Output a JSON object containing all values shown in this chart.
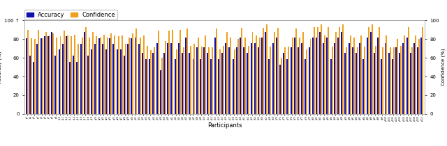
{
  "title": "",
  "xlabel": "Participants",
  "ylabel_left": "Accuracy (%)",
  "ylabel_right": "Confidence (%)",
  "ylim": [
    0,
    100
  ],
  "yticks": [
    0,
    20,
    40,
    60,
    80,
    100
  ],
  "bar_color_accuracy": "#1010aa",
  "bar_color_confidence": "#f0a020",
  "legend_accuracy": "Accuracy",
  "legend_confidence": "Confidence",
  "n_participants": 110,
  "accuracy": [
    81,
    62,
    56,
    75,
    81,
    83,
    83,
    88,
    62,
    69,
    75,
    83,
    56,
    62,
    56,
    75,
    88,
    62,
    69,
    75,
    81,
    75,
    69,
    81,
    75,
    69,
    69,
    62,
    75,
    81,
    82,
    75,
    65,
    59,
    59,
    65,
    76,
    47,
    65,
    76,
    76,
    59,
    76,
    65,
    82,
    65,
    59,
    71,
    59,
    71,
    65,
    59,
    82,
    59,
    65,
    76,
    71,
    59,
    71,
    82,
    71,
    65,
    76,
    76,
    71,
    82,
    88,
    59,
    76,
    82,
    53,
    65,
    59,
    71,
    82,
    71,
    76,
    59,
    71,
    82,
    82,
    88,
    76,
    82,
    59,
    76,
    82,
    88,
    65,
    76,
    71,
    65,
    76,
    59,
    82,
    88,
    65,
    82,
    59,
    76,
    65,
    59,
    71,
    65,
    76,
    82,
    65,
    76,
    71,
    82
  ],
  "confidence": [
    90,
    81,
    80,
    90,
    81,
    88,
    84,
    86,
    82,
    83,
    89,
    84,
    83,
    85,
    75,
    82,
    93,
    82,
    88,
    83,
    82,
    85,
    82,
    86,
    84,
    83,
    84,
    75,
    82,
    86,
    91,
    82,
    84,
    73,
    68,
    71,
    89,
    60,
    78,
    89,
    90,
    69,
    90,
    71,
    91,
    73,
    75,
    82,
    72,
    84,
    71,
    71,
    91,
    69,
    73,
    88,
    82,
    69,
    80,
    92,
    82,
    73,
    88,
    84,
    82,
    92,
    96,
    72,
    88,
    92,
    60,
    71,
    72,
    82,
    91,
    82,
    88,
    69,
    80,
    93,
    93,
    96,
    84,
    93,
    72,
    88,
    93,
    96,
    71,
    84,
    82,
    71,
    84,
    72,
    93,
    96,
    73,
    93,
    71,
    84,
    71,
    71,
    80,
    73,
    84,
    93,
    71,
    84,
    80,
    93
  ],
  "participant_ids": [
    "p1",
    "p2",
    "p3",
    "p4",
    "p5",
    "p6",
    "p7",
    "p8",
    "p9",
    "p10",
    "p11",
    "p12",
    "p13",
    "p14",
    "p15",
    "p16",
    "p17",
    "p18",
    "p19",
    "p20",
    "p21",
    "p22",
    "p23",
    "p24",
    "p25",
    "p26",
    "p27",
    "p28",
    "p29",
    "p30",
    "p31",
    "p32",
    "p33",
    "p34",
    "p35",
    "p36",
    "p37",
    "p38",
    "p39",
    "p40",
    "p41",
    "p42",
    "p43",
    "p44",
    "p45",
    "p46",
    "p47",
    "p48",
    "p49",
    "p50",
    "p51",
    "p52",
    "p53",
    "p54",
    "p55",
    "p56",
    "p57",
    "p58",
    "p59",
    "p60",
    "p61",
    "p62",
    "p63",
    "p64",
    "p65",
    "p66",
    "p67",
    "p68",
    "p69",
    "p70",
    "p71",
    "p72",
    "p73",
    "p74",
    "p75",
    "p76",
    "p77",
    "p78",
    "p79",
    "p80",
    "p81",
    "p82",
    "p83",
    "p84",
    "p85",
    "p86",
    "p87",
    "p88",
    "p89",
    "p90",
    "p91",
    "p92",
    "p93",
    "p94",
    "p95",
    "p96",
    "p97",
    "p98",
    "p99",
    "p100",
    "p101",
    "p102",
    "p103",
    "p104",
    "p105",
    "p106",
    "p107",
    "p108",
    "p109",
    "p110"
  ]
}
